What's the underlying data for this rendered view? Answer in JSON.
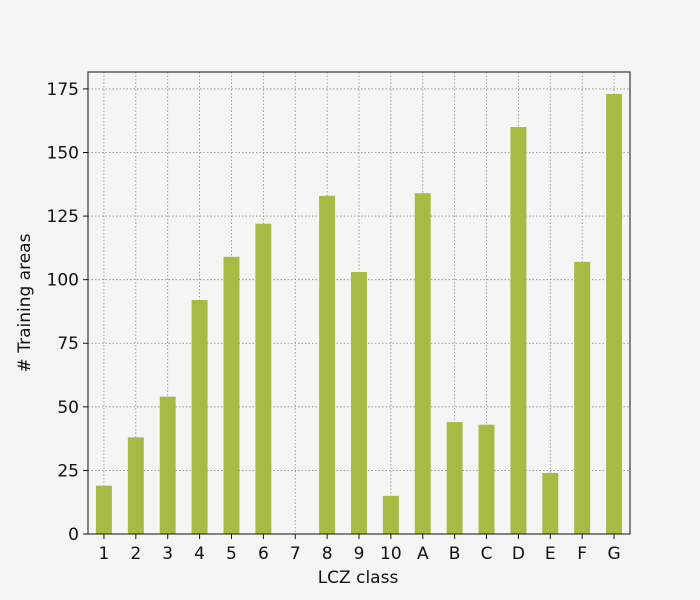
{
  "chart_data": {
    "type": "bar",
    "x_label": "LCZ class",
    "y_label": "# Training areas",
    "categories": [
      "1",
      "2",
      "3",
      "4",
      "5",
      "6",
      "7",
      "8",
      "9",
      "10",
      "A",
      "B",
      "C",
      "D",
      "E",
      "F",
      "G"
    ],
    "values": [
      19,
      38,
      54,
      92,
      109,
      122,
      0,
      133,
      103,
      15,
      134,
      44,
      43,
      160,
      24,
      107,
      173
    ],
    "color": "#a5bb44",
    "ylim": [
      0,
      181.65
    ],
    "yticks": [
      0,
      25,
      50,
      75,
      100,
      125,
      150,
      175
    ],
    "grid": true
  }
}
